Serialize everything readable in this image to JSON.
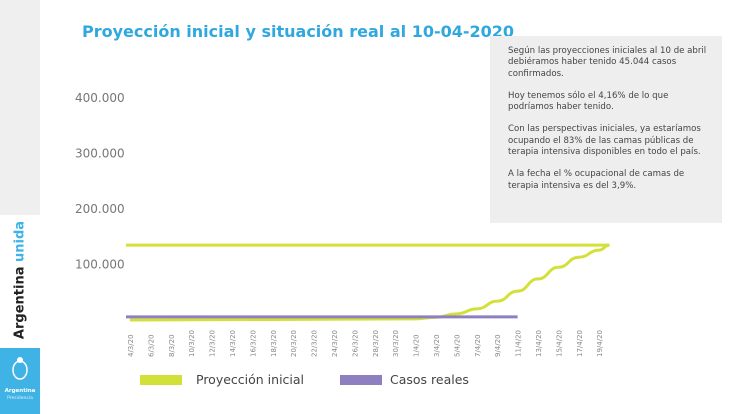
{
  "title": "Proyección inicial y situación real al 10-04-2020",
  "note": [
    "Según las proyecciones iniciales al 10 de abril debiéramos haber tenido 45.044 casos confirmados.",
    "Hoy tenemos sólo el 4,16% de lo que podríamos haber tenido.",
    "Con las perspectivas iniciales, ya estaríamos ocupando el 83% de las camas públicas de terapia intensiva disponibles en todo el país.",
    "A la fecha el % ocupacional de camas de terapia intensiva es del 3,9%."
  ],
  "brand": {
    "part1": "Argentina",
    "part2": "unida",
    "logo_line1": "Argentina",
    "logo_line2": "Presidencia"
  },
  "chart_data": {
    "type": "line",
    "title": "Proyección inicial y situación real al 10-04-2020",
    "x_tick_labels": [
      "4/3/20",
      "6/3/20",
      "8/3/20",
      "10/3/20",
      "12/3/20",
      "14/3/20",
      "16/3/20",
      "18/3/20",
      "20/3/20",
      "22/3/20",
      "24/3/20",
      "26/3/20",
      "28/3/20",
      "30/3/20",
      "1/4/20",
      "3/4/20",
      "5/4/20",
      "7/4/20",
      "9/4/20",
      "11/4/20",
      "13/4/20",
      "15/4/20",
      "17/4/20",
      "19/4/20"
    ],
    "y_tick_labels": [
      "100.000",
      "200.000",
      "300.000",
      "400.000"
    ],
    "ylim": [
      0,
      400000
    ],
    "grid": false,
    "legend_position": "bottom",
    "series": [
      {
        "name": "Proyección inicial",
        "color": "#d4e03a",
        "x": [
          "4/3/20",
          "1/4/20",
          "3/4/20",
          "5/4/20",
          "7/4/20",
          "9/4/20",
          "11/4/20",
          "13/4/20",
          "15/4/20",
          "17/4/20",
          "19/4/20",
          "20/4/20"
        ],
        "values": [
          0,
          2000,
          5000,
          11000,
          20000,
          34000,
          52000,
          74000,
          95000,
          113000,
          126000,
          135000
        ],
        "return_line_level": 135000
      },
      {
        "name": "Casos reales",
        "color": "#8e7fc0",
        "x": [
          "4/3/20",
          "11/4/20"
        ],
        "values": [
          2000,
          2000
        ]
      }
    ]
  }
}
